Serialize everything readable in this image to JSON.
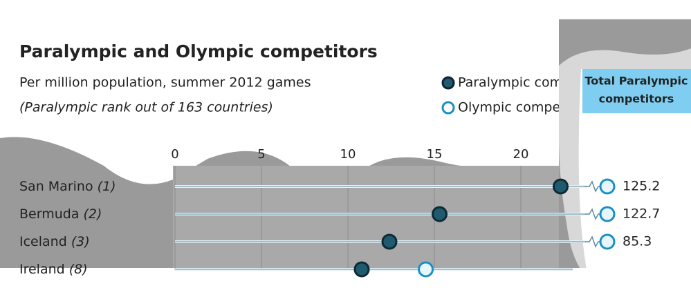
{
  "chart_data": {
    "type": "dot",
    "title": "Paralympic and Olympic competitors",
    "subtitle": "Per million population, summer 2012 games",
    "note": "(Paralympic rank out of 163 countries)",
    "column_header": [
      "Total Paralympic",
      "competitors"
    ],
    "categories": [
      "San Marino",
      "Bermuda",
      "Iceland",
      "Ireland"
    ],
    "ranks": [
      "(1)",
      "(2)",
      "(3)",
      "(8)"
    ],
    "xlim": [
      0,
      23
    ],
    "xticks": [
      0,
      5,
      10,
      15,
      20
    ],
    "grid": true,
    "series": [
      {
        "name": "Paralympic competitors",
        "color": "#1f5a6e",
        "values": [
          22.3,
          15.3,
          12.4,
          10.8
        ]
      },
      {
        "name": "Olympic competitors",
        "color": "#1a8fc5",
        "values": [
          125.2,
          122.7,
          85.3,
          14.5
        ]
      }
    ]
  }
}
